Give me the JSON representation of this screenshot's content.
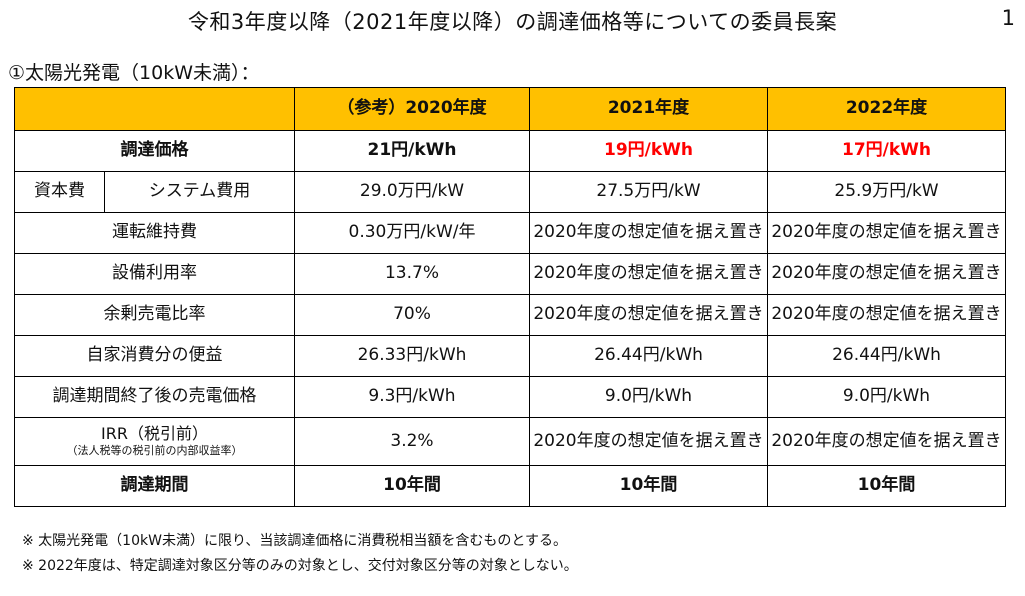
{
  "header": {
    "title": "令和3年度以降（2021年度以降）の調達価格等についての委員長案",
    "page_number": "1"
  },
  "section": {
    "subtitle": "①太陽光発電（10kW未満）："
  },
  "table": {
    "columns": [
      "（参考）2020年度",
      "2021年度",
      "2022年度"
    ],
    "rows": [
      {
        "label": "調達価格",
        "values": [
          "21円/kWh",
          "19円/kWh",
          "17円/kWh"
        ]
      },
      {
        "group": "資本費",
        "label": "システム費用",
        "values": [
          "29.0万円/kW",
          "27.5万円/kW",
          "25.9万円/kW"
        ]
      },
      {
        "label": "運転維持費",
        "values": [
          "0.30万円/kW/年",
          "2020年度の想定値を据え置き",
          "2020年度の想定値を据え置き"
        ]
      },
      {
        "label": "設備利用率",
        "values": [
          "13.7%",
          "2020年度の想定値を据え置き",
          "2020年度の想定値を据え置き"
        ]
      },
      {
        "label": "余剰売電比率",
        "values": [
          "70%",
          "2020年度の想定値を据え置き",
          "2020年度の想定値を据え置き"
        ]
      },
      {
        "label": "自家消費分の便益",
        "values": [
          "26.33円/kWh",
          "26.44円/kWh",
          "26.44円/kWh"
        ]
      },
      {
        "label": "調達期間終了後の売電価格",
        "values": [
          "9.3円/kWh",
          "9.0円/kWh",
          "9.0円/kWh"
        ]
      },
      {
        "label": "IRR（税引前）",
        "sublabel": "（法人税等の税引前の内部収益率）",
        "values": [
          "3.2%",
          "2020年度の想定値を据え置き",
          "2020年度の想定値を据え置き"
        ]
      },
      {
        "label": "調達期間",
        "values": [
          "10年間",
          "10年間",
          "10年間"
        ]
      }
    ]
  },
  "notes": [
    "※ 太陽光発電（10kW未満）に限り、当該調達価格に消費税相当額を含むものとする。",
    "※ 2022年度は、特定調達対象区分等のみの対象とし、交付対象区分等の対象としない。"
  ],
  "colors": {
    "header_bg": "#ffc000",
    "highlight_red": "#ff0000"
  }
}
